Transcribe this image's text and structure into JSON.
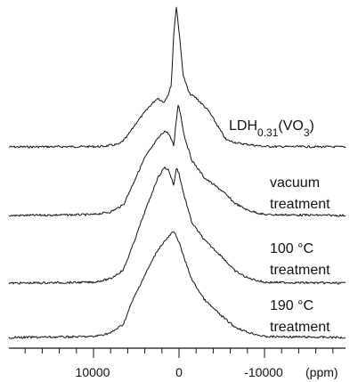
{
  "chart_data": {
    "type": "line",
    "xlabel": "(ppm)",
    "x_reversed": true,
    "xlim": [
      19000,
      -19000
    ],
    "x_ticks": [
      10000,
      0,
      -10000
    ],
    "x_tick_labels": [
      "10000",
      "0",
      "-10000"
    ],
    "x_minor_tick_step": 2000,
    "grid": false,
    "legend": "none",
    "line_color": "#111111",
    "series": [
      {
        "name": "LDH0.31(VO3)",
        "label_main": "LDH",
        "label_sub1": "0.31",
        "label_mid": "(VO",
        "label_sub2": "3",
        "label_end": ")",
        "x": [
          -19000,
          -10000,
          -7000,
          -5500,
          -3500,
          -2000,
          -1200,
          -500,
          0,
          300,
          600,
          900,
          1200,
          1800,
          2500,
          3500,
          5000,
          6200,
          7000,
          9000,
          19000
        ],
        "y": [
          0,
          0.5,
          4,
          8,
          40,
          55,
          60,
          80,
          130,
          158,
          130,
          70,
          60,
          50,
          55,
          45,
          27,
          10,
          3,
          0.5,
          0
        ]
      },
      {
        "name": "vacuum treatment",
        "label_lines": [
          "vacuum",
          "treatment"
        ],
        "x": [
          -19000,
          -10000,
          -8000,
          -6500,
          -5000,
          -3000,
          -1500,
          -600,
          -200,
          100,
          400,
          600,
          900,
          1200,
          1700,
          2500,
          4000,
          5500,
          6500,
          8000,
          10000,
          19000
        ],
        "y": [
          0,
          1,
          6,
          14,
          28,
          42,
          62,
          90,
          113,
          125,
          100,
          78,
          85,
          92,
          95,
          86,
          65,
          33,
          12,
          4,
          1,
          0
        ]
      },
      {
        "name": "100 °C treatment",
        "label_lines": [
          "100 °C",
          "treatment"
        ],
        "x": [
          -19000,
          -10000,
          -8000,
          -6500,
          -5000,
          -3000,
          -1500,
          -500,
          0,
          300,
          600,
          900,
          1200,
          1700,
          2500,
          4000,
          5500,
          6500,
          8000,
          10000,
          19000
        ],
        "y": [
          0,
          1,
          6,
          14,
          30,
          48,
          68,
          102,
          123,
          130,
          110,
          118,
          127,
          130,
          118,
          80,
          40,
          15,
          5,
          1,
          0
        ]
      },
      {
        "name": "190 °C treatment",
        "label_lines": [
          "190 °C",
          "treatment"
        ],
        "x": [
          -19000,
          -10000,
          -8000,
          -6500,
          -5000,
          -3000,
          -1500,
          -500,
          0,
          300,
          600,
          900,
          1200,
          1700,
          2500,
          4000,
          5500,
          6500,
          8000,
          10000,
          19000
        ],
        "y": [
          0,
          1,
          6,
          12,
          24,
          42,
          65,
          92,
          107,
          114,
          118,
          117,
          113,
          108,
          98,
          70,
          40,
          15,
          5,
          1,
          0
        ]
      }
    ]
  }
}
